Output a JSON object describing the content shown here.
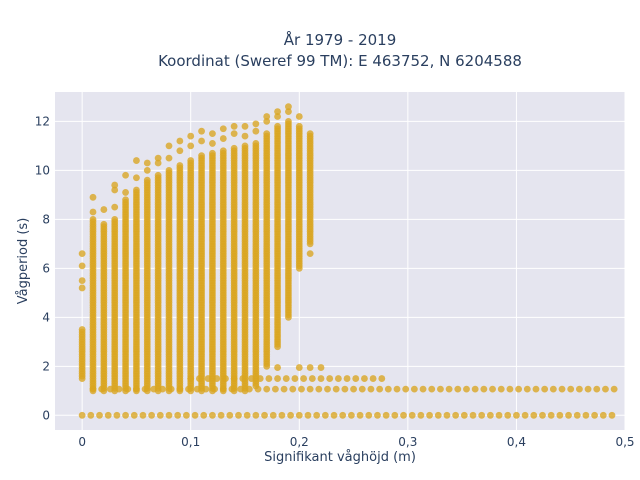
{
  "chart_data": {
    "type": "scatter",
    "title_line1": "År 1979 - 2019",
    "title_line2": "Koordinat (Sweref 99 TM): E 463752, N 6204588",
    "xlabel": "Signifikant våghöjd (m)",
    "ylabel": "Vågperiod (s)",
    "xlim": [
      -0.025,
      0.5
    ],
    "ylim": [
      -0.6,
      13.2
    ],
    "x_ticks": [
      0,
      0.1,
      0.2,
      0.3,
      0.4,
      0.5
    ],
    "x_tick_labels": [
      "0",
      "0,1",
      "0,2",
      "0,3",
      "0,4",
      "0,5"
    ],
    "y_ticks": [
      0,
      2,
      4,
      6,
      8,
      10,
      12
    ],
    "y_tick_labels": [
      "0",
      "2",
      "4",
      "6",
      "8",
      "10",
      "12"
    ],
    "grid": true,
    "marker_color": "#DAA520",
    "background": "#E5E5EF",
    "bands": [
      {
        "x": 0.0,
        "ymin": 1.5,
        "ymax": 3.5,
        "extras": [
          5.2,
          5.5,
          6.1,
          6.6
        ]
      },
      {
        "x": 0.01,
        "ymin": 1.0,
        "ymax": 8.0,
        "extras": [
          8.3,
          8.9
        ]
      },
      {
        "x": 0.02,
        "ymin": 1.0,
        "ymax": 7.8,
        "extras": [
          8.4
        ]
      },
      {
        "x": 0.03,
        "ymin": 1.0,
        "ymax": 8.0,
        "extras": [
          8.5,
          9.2,
          9.4
        ]
      },
      {
        "x": 0.04,
        "ymin": 1.0,
        "ymax": 8.8,
        "extras": [
          9.1,
          9.8
        ]
      },
      {
        "x": 0.05,
        "ymin": 1.0,
        "ymax": 9.2,
        "extras": [
          9.7,
          10.4
        ]
      },
      {
        "x": 0.06,
        "ymin": 1.0,
        "ymax": 9.6,
        "extras": [
          10.0,
          10.3
        ]
      },
      {
        "x": 0.07,
        "ymin": 1.0,
        "ymax": 9.8,
        "extras": [
          10.3,
          10.5
        ]
      },
      {
        "x": 0.08,
        "ymin": 1.0,
        "ymax": 10.0,
        "extras": [
          10.5,
          11.0
        ]
      },
      {
        "x": 0.09,
        "ymin": 1.0,
        "ymax": 10.2,
        "extras": [
          10.8,
          11.2
        ]
      },
      {
        "x": 0.1,
        "ymin": 1.0,
        "ymax": 10.4,
        "extras": [
          11.0,
          11.4
        ]
      },
      {
        "x": 0.11,
        "ymin": 1.0,
        "ymax": 10.6,
        "extras": [
          11.2,
          11.6
        ]
      },
      {
        "x": 0.12,
        "ymin": 1.0,
        "ymax": 10.7,
        "extras": [
          11.1,
          11.5
        ]
      },
      {
        "x": 0.13,
        "ymin": 1.0,
        "ymax": 10.8,
        "extras": [
          11.3,
          11.7
        ]
      },
      {
        "x": 0.14,
        "ymin": 1.0,
        "ymax": 10.9,
        "extras": [
          11.5,
          11.8
        ]
      },
      {
        "x": 0.15,
        "ymin": 1.0,
        "ymax": 11.0,
        "extras": [
          11.4,
          11.8
        ]
      },
      {
        "x": 0.16,
        "ymin": 1.2,
        "ymax": 11.1,
        "extras": [
          11.6,
          11.9
        ]
      },
      {
        "x": 0.17,
        "ymin": 2.0,
        "ymax": 11.5,
        "extras": [
          12.0,
          12.2
        ]
      },
      {
        "x": 0.18,
        "ymin": 2.8,
        "ymax": 11.8,
        "extras": [
          12.2,
          12.4
        ]
      },
      {
        "x": 0.19,
        "ymin": 4.0,
        "ymax": 12.0,
        "extras": [
          12.4,
          12.6
        ]
      },
      {
        "x": 0.2,
        "ymin": 6.0,
        "ymax": 11.8,
        "extras": [
          12.2
        ]
      },
      {
        "x": 0.21,
        "ymin": 7.0,
        "ymax": 11.5,
        "extras": [
          6.6
        ]
      }
    ],
    "clusters": [
      {
        "y": 1.07,
        "xmin": 0.01,
        "xmax": 0.49,
        "step": 0.008
      },
      {
        "y": 1.5,
        "xmin": 0.1,
        "xmax": 0.28,
        "step": 0.008
      },
      {
        "y": 1.95,
        "points": [
          0.18,
          0.2,
          0.21,
          0.22
        ]
      },
      {
        "y": 0.0,
        "xmin": 0.0,
        "xmax": 0.49,
        "step": 0.008
      }
    ]
  }
}
